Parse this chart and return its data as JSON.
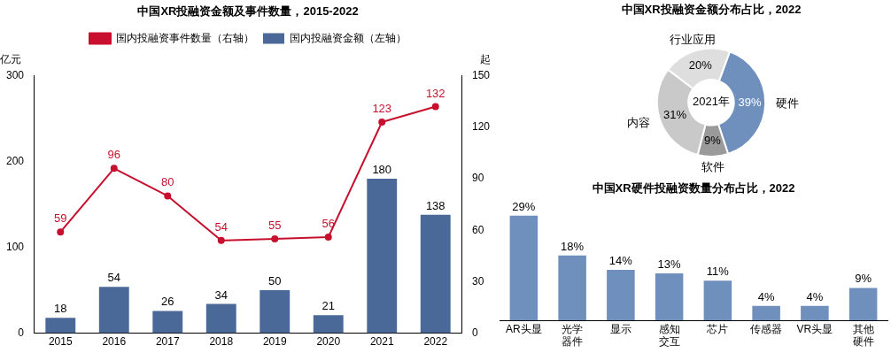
{
  "chart_data": [
    {
      "type": "bar",
      "title": "中国XR投融资金额及事件数量，2015-2022",
      "categories": [
        "2015",
        "2016",
        "2017",
        "2018",
        "2019",
        "2020",
        "2021",
        "2022"
      ],
      "series": [
        {
          "name": "国内投融资事件数量（右轴）",
          "type": "line",
          "axis": "y2",
          "color": "#c8102e",
          "values": [
            59,
            96,
            80,
            54,
            55,
            56,
            123,
            132
          ]
        },
        {
          "name": "国内投融资金额（左轴）",
          "color": "#4a6898",
          "values": [
            18,
            54,
            26,
            34,
            50,
            21,
            180,
            138
          ]
        }
      ],
      "ylabel": "亿元",
      "y2label": "起",
      "ylim": [
        0,
        300
      ],
      "yticks": [
        0,
        100,
        200,
        300
      ],
      "y2lim": [
        0,
        150
      ],
      "y2ticks": [
        0,
        30,
        60,
        90,
        120,
        150
      ],
      "data_labels": true,
      "legend": "top",
      "grid": false,
      "marker": "circle"
    },
    {
      "type": "donut",
      "title": "中国XR投融资金额分布占比，2022",
      "categories": [
        "硬件",
        "软件",
        "内容",
        "行业应用"
      ],
      "values": [
        39,
        9,
        31,
        20
      ],
      "colors": [
        "#6f8fbd",
        "#9a9a9a",
        "#c9c9c9",
        "#dedede"
      ],
      "value_labels": [
        "39%",
        "9%",
        "31%",
        "20%"
      ],
      "annotations": [
        "2021年"
      ]
    },
    {
      "type": "bar",
      "title": "中国XR硬件投融资数量分布占比，2022",
      "categories": [
        "AR头显",
        "光学器件",
        "显示",
        "感知交互",
        "芯片",
        "传感器",
        "VR头显",
        "其他硬件"
      ],
      "values": [
        29,
        18,
        14,
        13,
        11,
        4,
        4,
        9
      ],
      "color": "#6f8fbd",
      "value_labels": [
        "29%",
        "18%",
        "14%",
        "13%",
        "11%",
        "4%",
        "4%",
        "9%"
      ]
    }
  ]
}
